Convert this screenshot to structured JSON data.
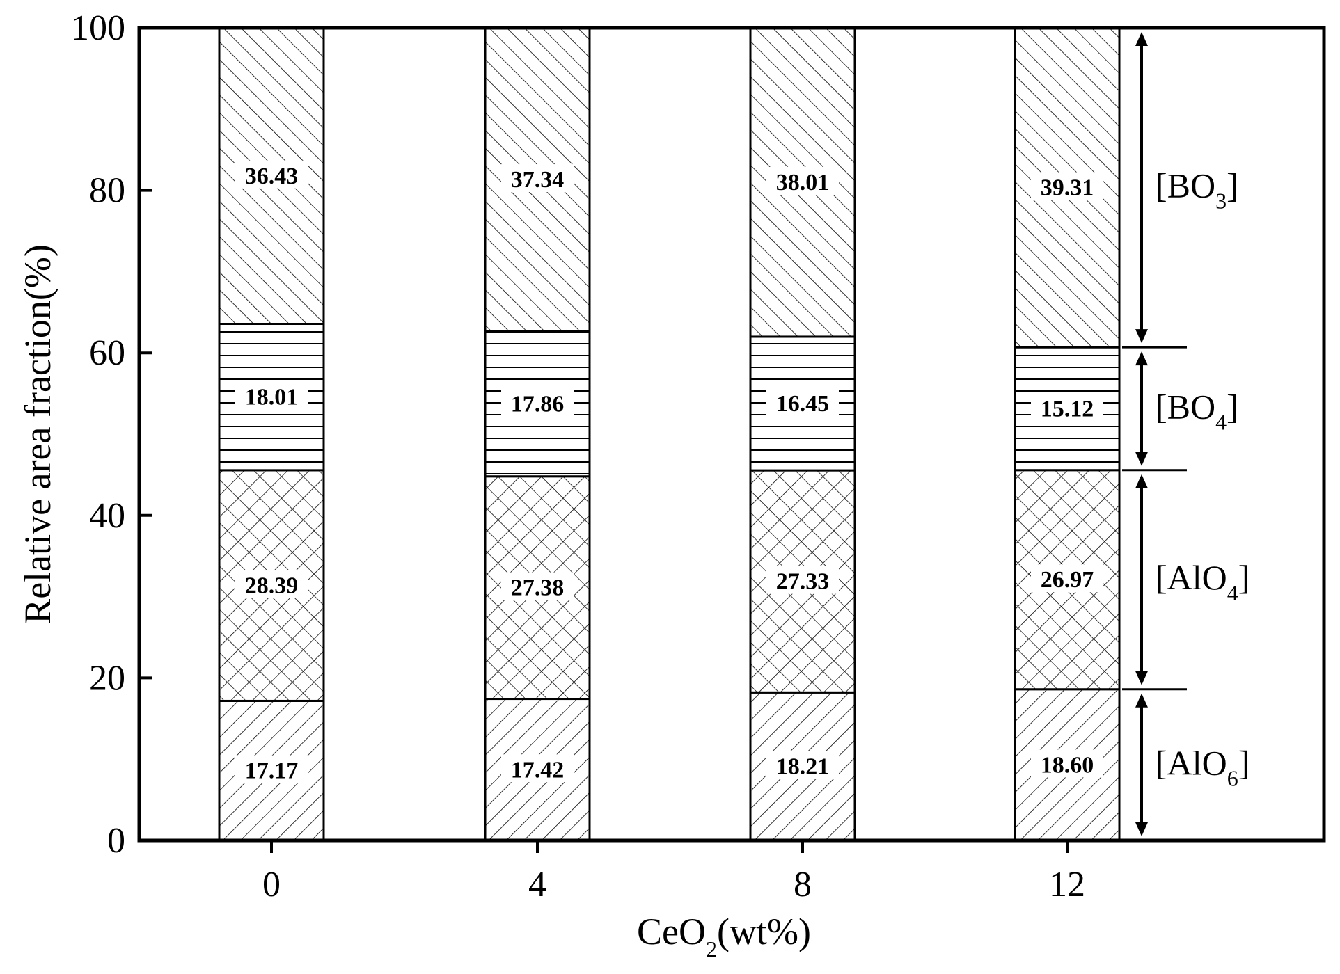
{
  "chart_data": {
    "type": "bar",
    "stacked": true,
    "xlabel": {
      "main": "CeO",
      "sub": "2",
      "rest": "(wt%)"
    },
    "ylabel": "Relative area fraction(%)",
    "ylim": [
      0,
      100
    ],
    "yticks": [
      "0",
      "20",
      "40",
      "60",
      "80",
      "100"
    ],
    "categories": [
      "0",
      "4",
      "8",
      "12"
    ],
    "series": [
      {
        "key": "AlO6",
        "pattern": "diag-fwd",
        "values": [
          17.17,
          17.42,
          18.21,
          18.6
        ],
        "labels": [
          "17.17",
          "17.42",
          "18.21",
          "18.60"
        ]
      },
      {
        "key": "AlO4",
        "pattern": "crosshatch",
        "values": [
          28.39,
          27.38,
          27.33,
          26.97
        ],
        "labels": [
          "28.39",
          "27.38",
          "27.33",
          "26.97"
        ]
      },
      {
        "key": "BO4",
        "pattern": "horizontal",
        "values": [
          18.01,
          17.86,
          16.45,
          15.12
        ],
        "labels": [
          "18.01",
          "17.86",
          "16.45",
          "15.12"
        ]
      },
      {
        "key": "BO3",
        "pattern": "diag-back",
        "values": [
          36.43,
          37.34,
          38.01,
          39.31
        ],
        "labels": [
          "36.43",
          "37.34",
          "38.01",
          "39.31"
        ]
      }
    ],
    "annotations": [
      {
        "series": "BO3",
        "text": "[BO",
        "sub": "3",
        "close": "]"
      },
      {
        "series": "BO4",
        "text": "[BO",
        "sub": "4",
        "close": "]"
      },
      {
        "series": "AlO4",
        "text": "[AlO",
        "sub": "4",
        "close": "]"
      },
      {
        "series": "AlO6",
        "text": "[AlO",
        "sub": "6",
        "close": "]"
      }
    ],
    "grid": false,
    "colors": {
      "line": "#000000",
      "background": "#ffffff"
    }
  }
}
